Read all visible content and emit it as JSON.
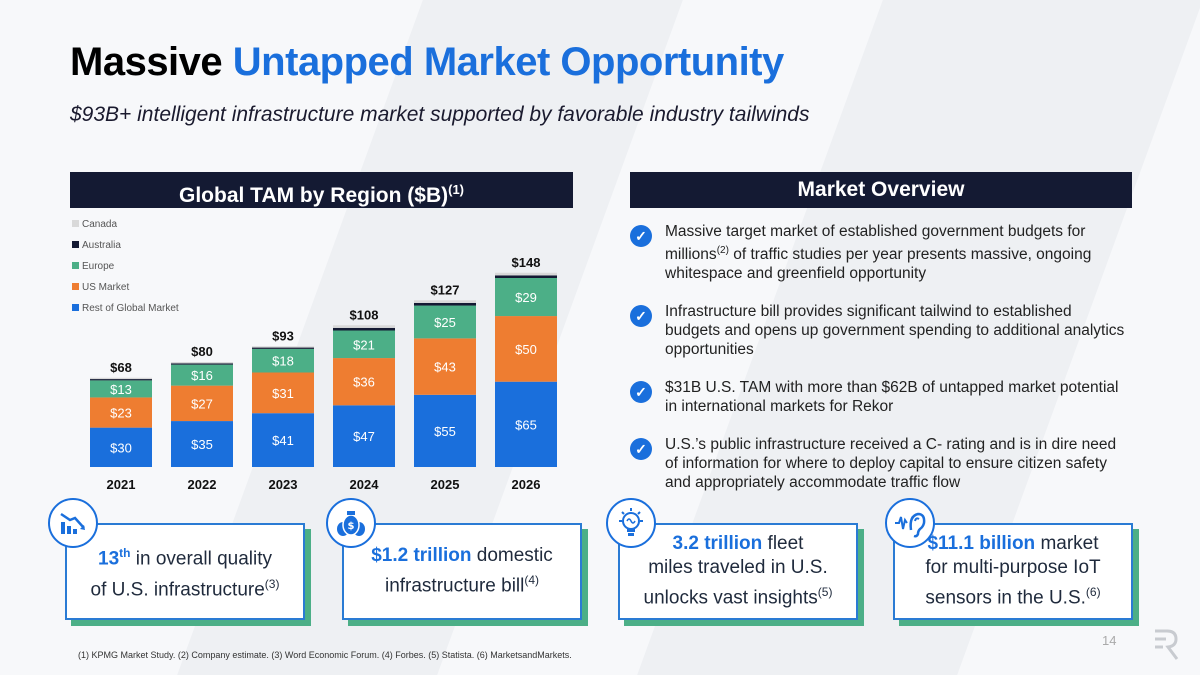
{
  "title": {
    "dark": "Massive",
    "blue": "Untapped Market Opportunity"
  },
  "subtitle": "$93B+ intelligent infrastructure market supported by favorable industry tailwinds",
  "left_header": {
    "text": "Global TAM by Region ($B)",
    "sup": "(1)"
  },
  "right_header": "Market Overview",
  "chart_data": {
    "type": "bar",
    "stacked": true,
    "title": "Global TAM by Region ($B)",
    "categories": [
      "2021",
      "2022",
      "2023",
      "2024",
      "2025",
      "2026"
    ],
    "series": [
      {
        "name": "Rest of Global Market",
        "color": "#1a6fdc",
        "values": [
          30,
          35,
          41,
          47,
          55,
          65
        ],
        "labels": [
          "$30",
          "$35",
          "$41",
          "$47",
          "$55",
          "$65"
        ]
      },
      {
        "name": "US Market",
        "color": "#ee7d31",
        "values": [
          23,
          27,
          31,
          36,
          43,
          50
        ],
        "labels": [
          "$23",
          "$27",
          "$31",
          "$36",
          "$43",
          "$50"
        ]
      },
      {
        "name": "Europe",
        "color": "#4caf87",
        "values": [
          13,
          16,
          18,
          21,
          25,
          29
        ],
        "labels": [
          "$13",
          "$16",
          "$18",
          "$21",
          "$25",
          "$29"
        ]
      },
      {
        "name": "Australia",
        "color": "#141a33",
        "values": [
          1,
          1,
          1,
          2,
          2,
          2
        ]
      },
      {
        "name": "Canada",
        "color": "#d9d9d9",
        "values": [
          1,
          1,
          1,
          2,
          2,
          2
        ]
      }
    ],
    "totals": [
      "$68",
      "$80",
      "$93",
      "$108",
      "$127",
      "$148"
    ],
    "legend": [
      "Canada",
      "Australia",
      "Europe",
      "US Market",
      "Rest of Global Market"
    ],
    "legend_position": "top-left",
    "ylim": [
      0,
      160
    ]
  },
  "overview_items": [
    {
      "pre": "Massive target market of established government budgets for millions",
      "sup": "(2)",
      "post": " of traffic studies per year presents massive, ongoing whitespace and greenfield opportunity"
    },
    {
      "pre": "Infrastructure bill provides significant tailwind to established budgets and opens up government spending to additional analytics opportunities",
      "sup": "",
      "post": ""
    },
    {
      "pre": "$31B U.S. TAM with more than $62B of untapped market potential in international markets for Rekor",
      "sup": "",
      "post": ""
    },
    {
      "pre": "U.S.’s public infrastructure received a C- rating and is in dire need of information for where to deploy capital to ensure citizen safety and appropriately accommodate traffic flow",
      "sup": "",
      "post": ""
    }
  ],
  "stats": [
    {
      "hl": "13",
      "hl_sup": "th",
      "text1": " in overall quality",
      "text2": "of U.S. infrastructure",
      "sup": "(3)",
      "icon": "declining-chart-icon"
    },
    {
      "hl": "$1.2 trillion",
      "text1": " domestic",
      "text2": "infrastructure bill",
      "sup": "(4)",
      "icon": "money-bags-icon"
    },
    {
      "hl": "3.2 trillion",
      "text1": " fleet",
      "text2": "miles traveled in U.S.",
      "text3": "unlocks vast insights",
      "sup": "(5)",
      "icon": "lightbulb-brain-icon"
    },
    {
      "hl": "$11.1 billion",
      "text1": " market",
      "text2": "for multi-purpose IoT",
      "text3": "sensors in the U.S.",
      "sup": "(6)",
      "icon": "ear-sound-icon"
    }
  ],
  "footnote": "(1) KPMG Market Study. (2) Company estimate. (3) Word Economic Forum. (4) Forbes. (5) Statista. (6) MarketsandMarkets.",
  "page_number": "14"
}
